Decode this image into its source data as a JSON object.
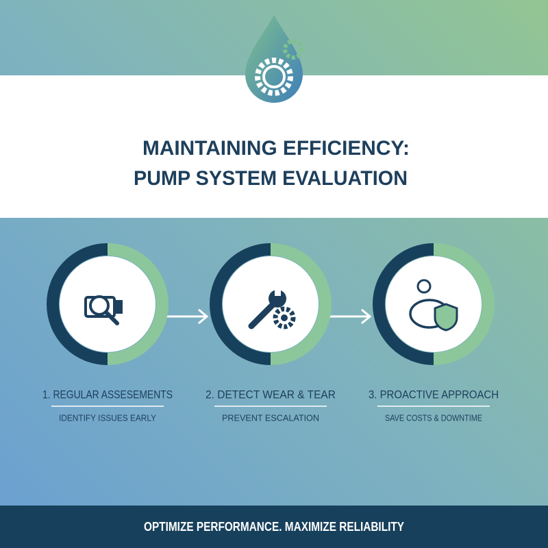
{
  "header": {
    "title_lines": [
      "MAINTAINING EFFICIENCY:",
      "PUMP SYSTEM EVALUATION"
    ]
  },
  "steps": [
    {
      "title": "1. REGULAR ASSESEMENTS",
      "subtitle": "IDENTIFY ISSUES EARLY"
    },
    {
      "title": "2. DETECT WEAR & TEAR",
      "subtitle": "PREVENT ESCALATION"
    },
    {
      "title": "3. PROACTIVE APPROACH",
      "subtitle": "SAVE COSTS & DOWNTIME"
    }
  ],
  "footer": {
    "text": "OPTIMIZE PERFORMANCE. MAXIMIZE RELIABILITY"
  }
}
